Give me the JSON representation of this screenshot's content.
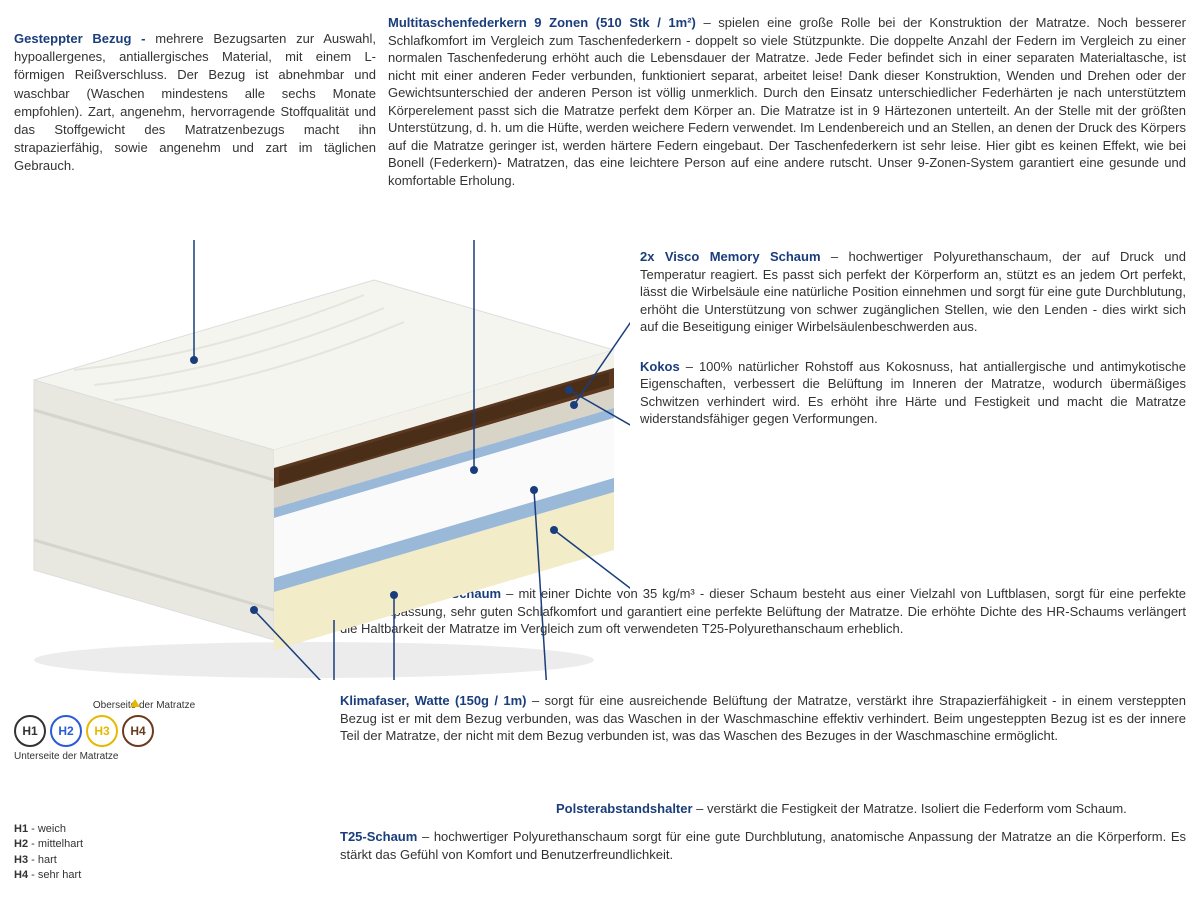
{
  "leftCol": {
    "title": "Gesteppter Bezug - ",
    "body": "mehrere Bezugsarten zur Auswahl, hypoallergenes, antiallergisches Material, mit einem L-förmigen Reißverschluss. Der Bezug ist abnehmbar und waschbar (Waschen mindestens alle sechs Monate empfohlen). Zart, angenehm, hervorragende Stoffqualität und das Stoffgewicht des Matratzenbezugs macht ihn strapazierfähig, sowie angenehm und zart im täglichen Gebrauch."
  },
  "topRight": {
    "title": "Multitaschenfederkern 9 Zonen (510 Stk / 1m²)",
    "body": " – spielen eine große Rolle bei der Konstruktion der Matratze. Noch besserer Schlafkomfort im Vergleich zum Taschenfederkern - doppelt so viele Stützpunkte. Die doppelte Anzahl der Federn im Vergleich zu einer normalen Taschenfederung erhöht auch die Lebensdauer der Matratze. Jede Feder befindet sich in einer separaten Materialtasche, ist nicht mit einer anderen Feder verbunden, funktioniert separat, arbeitet leise! Dank dieser Konstruktion, Wenden und Drehen oder der Gewichtsunterschied der anderen Person ist völlig unmerklich. Durch den Einsatz unterschiedlicher Federhärten je nach unterstütztem Körperelement passt sich die Matratze perfekt dem Körper an. Die Matratze ist in 9 Härtezonen unterteilt. An der Stelle mit der größten Unterstützung, d. h. um die Hüfte, werden weichere Federn verwendet. Im Lendenbereich und an Stellen, an denen der Druck des Körpers auf die Matratze geringer ist, werden härtere Federn eingebaut. Der Taschenfederkern ist sehr leise. Hier gibt es keinen Effekt, wie bei Bonell (Federkern)- Matratzen, das eine leichtere Person auf eine andere rutscht. Unser 9-Zonen-System garantiert eine gesunde und komfortable Erholung."
  },
  "visco": {
    "title": "2x Visco Memory Schaum",
    "body": " – hochwertiger Polyurethanschaum, der auf Druck und Temperatur reagiert. Es passt sich perfekt der Körperform an, stützt es an jedem Ort perfekt, lässt die Wirbelsäule eine natürliche Position einnehmen und sorgt für eine gute Durchblutung, erhöht die Unterstützung von schwer zugänglichen Stellen, wie den Lenden - dies wirkt sich auf die Beseitigung einiger Wirbelsäulenbeschwerden aus."
  },
  "kokos": {
    "title": "Kokos",
    "body": " – 100% natürlicher Rohstoff aus Kokosnuss, hat antiallergische und antimykotische Eigenschaften, verbessert die Belüftung im Inneren der Matratze, wodurch übermäßiges Schwitzen verhindert wird. Es erhöht ihre Härte und Festigkeit und macht die Matratze widerstandsfähiger gegen Verformungen."
  },
  "hr": {
    "title": "Hochflexibler HR-Schaum",
    "body": " – mit einer Dichte von 35 kg/m³ - dieser Schaum besteht aus einer Vielzahl von Luftblasen, sorgt für eine perfekte Körperanpassung, sehr guten Schlafkomfort und garantiert eine perfekte Belüftung der Matratze. Die erhöhte Dichte des HR-Schaums verlängert die Haltbarkeit der Matratze im Vergleich zum oft verwendeten T25-Polyurethanschaum erheblich."
  },
  "klima": {
    "title": "Klimafaser, Watte (150g / 1m)",
    "body": " – sorgt für eine ausreichende Belüftung der Matratze, verstärkt ihre Strapazierfähigkeit - in einem versteppten Bezug ist er mit dem Bezug verbunden, was das Waschen in der Waschmaschine effektiv verhindert. Beim ungesteppten Bezug ist es der innere Teil der Matratze, der nicht mit dem Bezug verbunden ist, was das Waschen des Bezuges in der Waschmaschine ermöglicht."
  },
  "polster": {
    "title": "Polsterabstandshalter",
    "body": " – verstärkt die Festigkeit der Matratze. Isoliert die Federform vom Schaum."
  },
  "t25": {
    "title": "T25-Schaum",
    "body": " – hochwertiger Polyurethanschaum sorgt für eine gute Durchblutung, anatomische Anpassung der Matratze an die Körperform. Es stärkt das Gefühl von Komfort und Benutzerfreundlichkeit."
  },
  "hardness": {
    "topLabel": "Oberseite der Matratze",
    "bottomLabel": "Unterseite der Matratze",
    "items": [
      {
        "code": "H1",
        "color": "#333333",
        "desc": "weich"
      },
      {
        "code": "H2",
        "color": "#2a5bd7",
        "desc": "mittelhart"
      },
      {
        "code": "H3",
        "color": "#e6b800",
        "desc": "hart"
      },
      {
        "code": "H4",
        "color": "#6b3a1e",
        "desc": "sehr hart"
      }
    ]
  },
  "mattressColors": {
    "coverTop": "#f5f5f0",
    "coverSide": "#e8e8e0",
    "kokos": "#5a3820",
    "visco": "#d8d4c8",
    "spacer": "#9ab8d8",
    "springYellow": "#e6c847",
    "springBlue": "#3a6bc7",
    "hrFoam": "#f2ecc8",
    "shadow": "#cccccc"
  }
}
